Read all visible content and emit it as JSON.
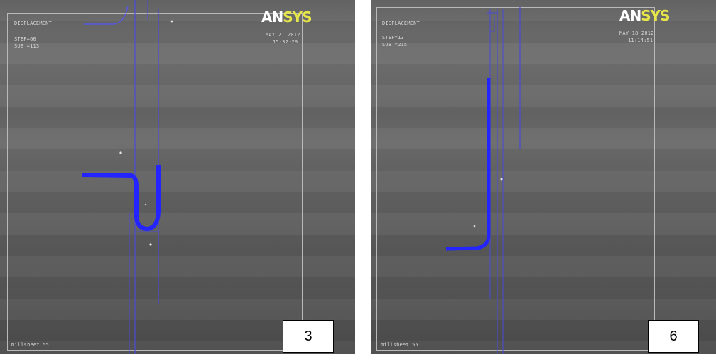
{
  "panels": [
    {
      "id": "left",
      "header_lines": [
        "DISPLACEMENT",
        "STEP=60",
        "SUB =113"
      ],
      "logo": {
        "an": "AN",
        "sys": "SYS"
      },
      "date_lines": [
        "MAY 21 2012",
        "15:32:29"
      ],
      "footer": "millsheet 55",
      "label": "3"
    },
    {
      "id": "right",
      "header_lines": [
        "DISPLACEMENT",
        "STEP=13",
        "SUB =215"
      ],
      "logo": {
        "an": "AN",
        "sys": "SYS"
      },
      "date_lines": [
        "MAY 18 2012",
        "11:14:51"
      ],
      "footer": "millsheet 55",
      "label": "6"
    }
  ],
  "colors": {
    "mesh_blue": "#2424ff",
    "outline_blue": "#4a4ad8",
    "logo_yellow": "#e6e64a"
  }
}
